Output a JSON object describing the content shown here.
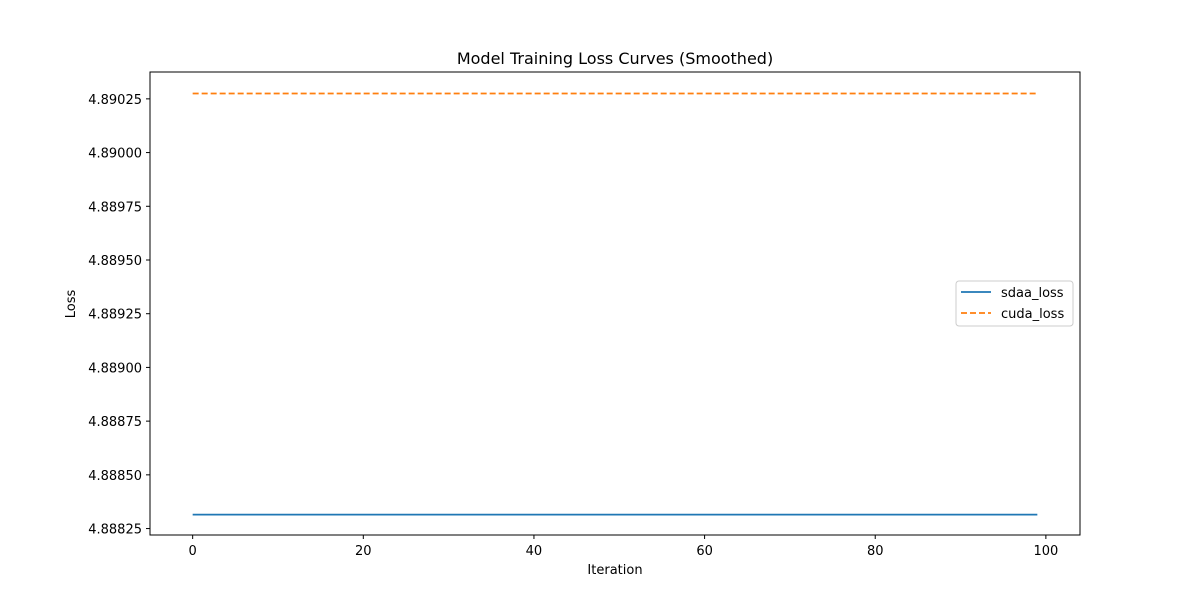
{
  "chart_data": {
    "type": "line",
    "title": "Model Training Loss Curves (Smoothed)",
    "xlabel": "Iteration",
    "ylabel": "Loss",
    "xlim": [
      -5,
      104
    ],
    "ylim": [
      4.88822,
      4.890375
    ],
    "x_ticks": [
      0,
      20,
      40,
      60,
      80,
      100
    ],
    "y_ticks": [
      4.88825,
      4.8885,
      4.88875,
      4.889,
      4.88925,
      4.8895,
      4.88975,
      4.89,
      4.89025
    ],
    "y_tick_labels": [
      "4.88825",
      "4.88850",
      "4.88875",
      "4.88900",
      "4.88925",
      "4.88950",
      "4.88975",
      "4.89000",
      "4.89025"
    ],
    "grid": false,
    "legend_position": "center-right",
    "series": [
      {
        "name": "sdaa_loss",
        "x": [
          0,
          99
        ],
        "y": [
          4.888315,
          4.888315
        ],
        "color": "#1f77b4",
        "linestyle": "solid"
      },
      {
        "name": "cuda_loss",
        "x": [
          0,
          99
        ],
        "y": [
          4.890275,
          4.890275
        ],
        "color": "#ff7f0e",
        "linestyle": "dashed"
      }
    ]
  }
}
